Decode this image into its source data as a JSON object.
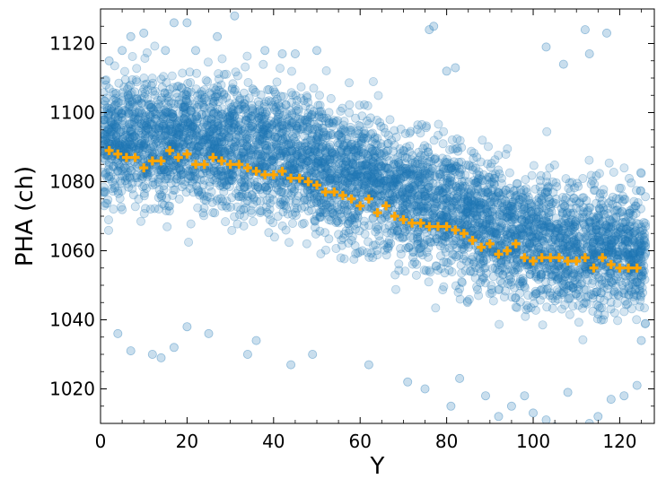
{
  "chart_data": {
    "type": "scatter",
    "xlabel": "Y",
    "ylabel": "PHA (ch)",
    "xlim": [
      0,
      128
    ],
    "ylim": [
      1010,
      1130
    ],
    "x_ticks": [
      0,
      20,
      40,
      60,
      80,
      100,
      120
    ],
    "y_ticks": [
      1020,
      1040,
      1060,
      1080,
      1100,
      1120
    ],
    "grid": false,
    "series": [
      {
        "role": "individual events",
        "color": "#1f77b4",
        "alpha": 0.35,
        "trend": [
          [
            0,
            1093
          ],
          [
            20,
            1092
          ],
          [
            40,
            1089
          ],
          [
            60,
            1081
          ],
          [
            80,
            1072
          ],
          [
            100,
            1063
          ],
          [
            126,
            1060
          ]
        ],
        "spread": 15,
        "points": [
          [
            2,
            1115
          ],
          [
            5,
            1118
          ],
          [
            7,
            1122
          ],
          [
            10,
            1123
          ],
          [
            15,
            1118
          ],
          [
            17,
            1126
          ],
          [
            20,
            1126
          ],
          [
            22,
            1118
          ],
          [
            27,
            1122
          ],
          [
            31,
            1128
          ],
          [
            38,
            1118
          ],
          [
            42,
            1117
          ],
          [
            45,
            1117
          ],
          [
            50,
            1118
          ],
          [
            76,
            1124
          ],
          [
            77,
            1125
          ],
          [
            80,
            1112
          ],
          [
            82,
            1113
          ],
          [
            103,
            1119
          ],
          [
            107,
            1114
          ],
          [
            112,
            1124
          ],
          [
            113,
            1117
          ],
          [
            117,
            1123
          ],
          [
            4,
            1036
          ],
          [
            7,
            1031
          ],
          [
            12,
            1030
          ],
          [
            14,
            1029
          ],
          [
            17,
            1032
          ],
          [
            20,
            1038
          ],
          [
            25,
            1036
          ],
          [
            34,
            1030
          ],
          [
            36,
            1034
          ],
          [
            44,
            1027
          ],
          [
            49,
            1030
          ],
          [
            62,
            1027
          ],
          [
            71,
            1022
          ],
          [
            75,
            1020
          ],
          [
            81,
            1015
          ],
          [
            83,
            1023
          ],
          [
            89,
            1018
          ],
          [
            92,
            1012
          ],
          [
            95,
            1015
          ],
          [
            98,
            1018
          ],
          [
            100,
            1013
          ],
          [
            103,
            1011
          ],
          [
            105,
            1009
          ],
          [
            108,
            1019
          ],
          [
            113,
            1010
          ],
          [
            115,
            1012
          ],
          [
            118,
            1017
          ],
          [
            121,
            1018
          ],
          [
            124,
            1021
          ],
          [
            125,
            1034
          ]
        ]
      },
      {
        "role": "binned mean",
        "color": "#ffa500",
        "marker": "plus",
        "x": [
          2,
          4,
          6,
          8,
          10,
          12,
          14,
          16,
          18,
          20,
          22,
          24,
          26,
          28,
          30,
          32,
          34,
          36,
          38,
          40,
          42,
          44,
          46,
          48,
          50,
          52,
          54,
          56,
          58,
          60,
          62,
          64,
          66,
          68,
          70,
          72,
          74,
          76,
          78,
          80,
          82,
          84,
          86,
          88,
          90,
          92,
          94,
          96,
          98,
          100,
          102,
          104,
          106,
          108,
          110,
          112,
          114,
          116,
          118,
          120,
          122,
          124
        ],
        "y": [
          1089,
          1088,
          1087,
          1087,
          1084,
          1086,
          1086,
          1089,
          1087,
          1088,
          1085,
          1085,
          1087,
          1086,
          1085,
          1085,
          1084,
          1083,
          1082,
          1082,
          1083,
          1081,
          1081,
          1080,
          1079,
          1077,
          1077,
          1076,
          1075,
          1073,
          1075,
          1071,
          1073,
          1070,
          1069,
          1068,
          1068,
          1067,
          1067,
          1067,
          1066,
          1065,
          1063,
          1061,
          1062,
          1059,
          1060,
          1062,
          1058,
          1057,
          1058,
          1058,
          1058,
          1057,
          1057,
          1058,
          1055,
          1058,
          1056,
          1055,
          1055,
          1055
        ]
      }
    ]
  }
}
